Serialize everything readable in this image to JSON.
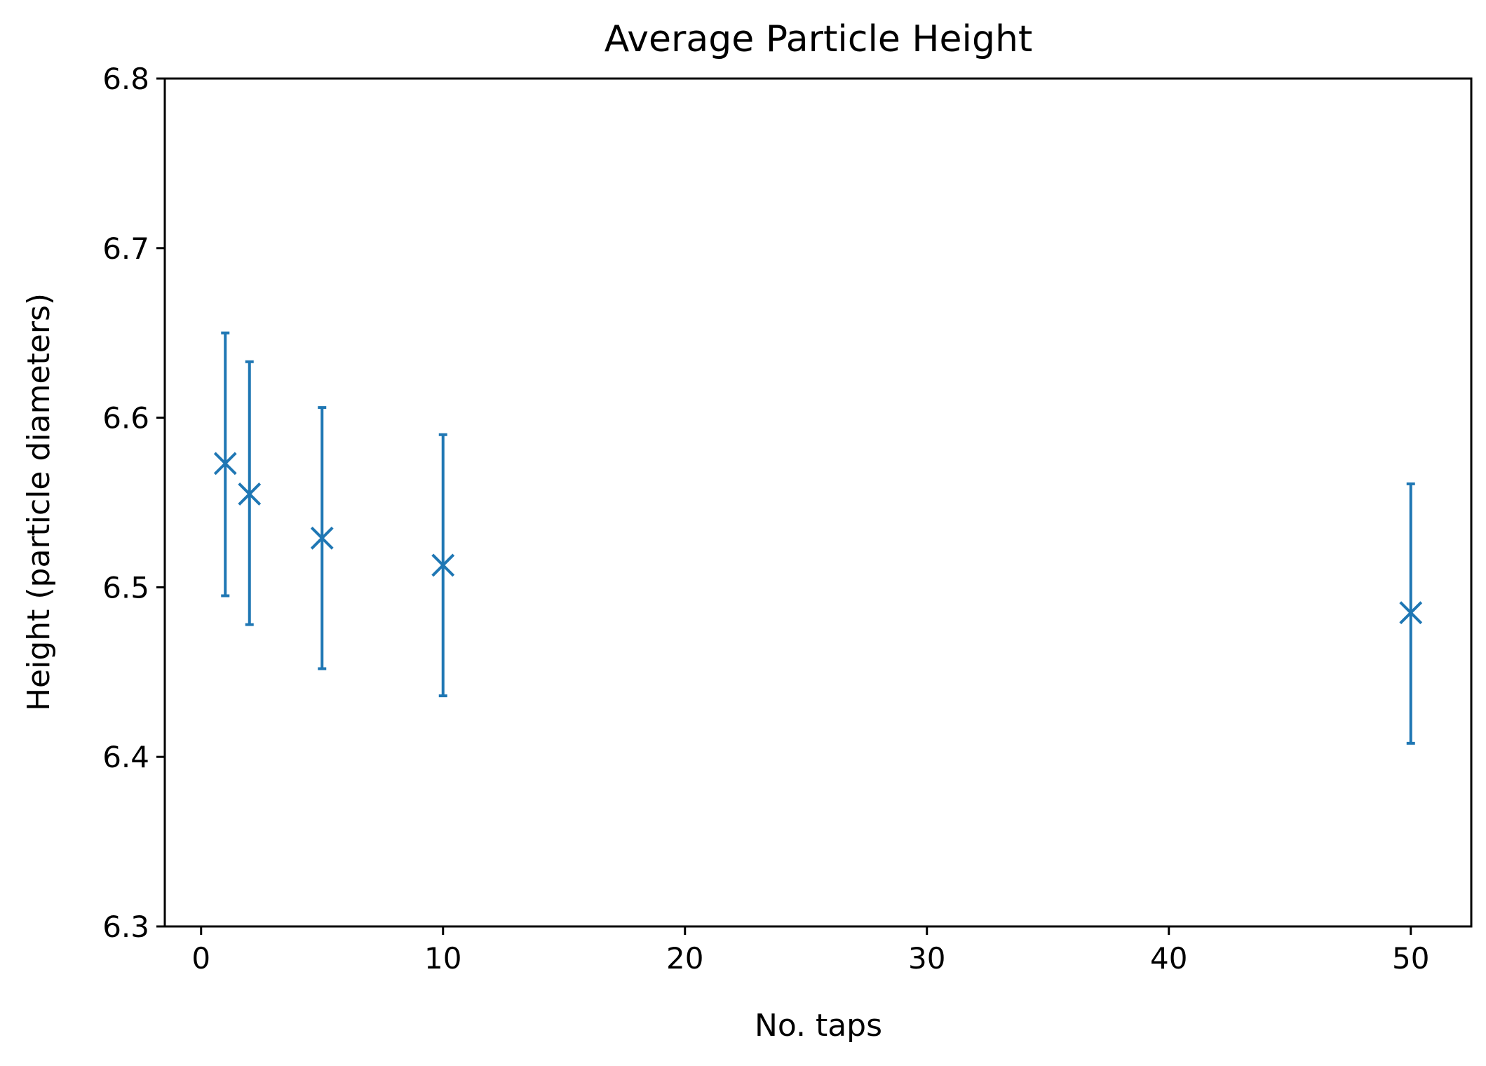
{
  "chart_data": {
    "type": "scatter",
    "title": "Average Particle Height",
    "xlabel": "No. taps",
    "ylabel": "Height (particle diameters)",
    "xlim": [
      -1.5,
      52.5
    ],
    "ylim": [
      6.3,
      6.8
    ],
    "xticks": [
      0,
      10,
      20,
      30,
      40,
      50
    ],
    "xtick_labels": [
      "0",
      "10",
      "20",
      "30",
      "40",
      "50"
    ],
    "yticks": [
      6.3,
      6.4,
      6.5,
      6.6,
      6.7,
      6.8
    ],
    "ytick_labels": [
      "6.3",
      "6.4",
      "6.5",
      "6.6",
      "6.7",
      "6.8"
    ],
    "grid": false,
    "marker": "x",
    "color": "#1f77b4",
    "series": [
      {
        "points": [
          {
            "x": 1,
            "y": 6.573,
            "yerr_low": 6.495,
            "yerr_high": 6.65
          },
          {
            "x": 2,
            "y": 6.555,
            "yerr_low": 6.478,
            "yerr_high": 6.633
          },
          {
            "x": 5,
            "y": 6.529,
            "yerr_low": 6.452,
            "yerr_high": 6.606
          },
          {
            "x": 10,
            "y": 6.513,
            "yerr_low": 6.436,
            "yerr_high": 6.59
          },
          {
            "x": 50,
            "y": 6.485,
            "yerr_low": 6.408,
            "yerr_high": 6.561
          }
        ]
      }
    ]
  }
}
